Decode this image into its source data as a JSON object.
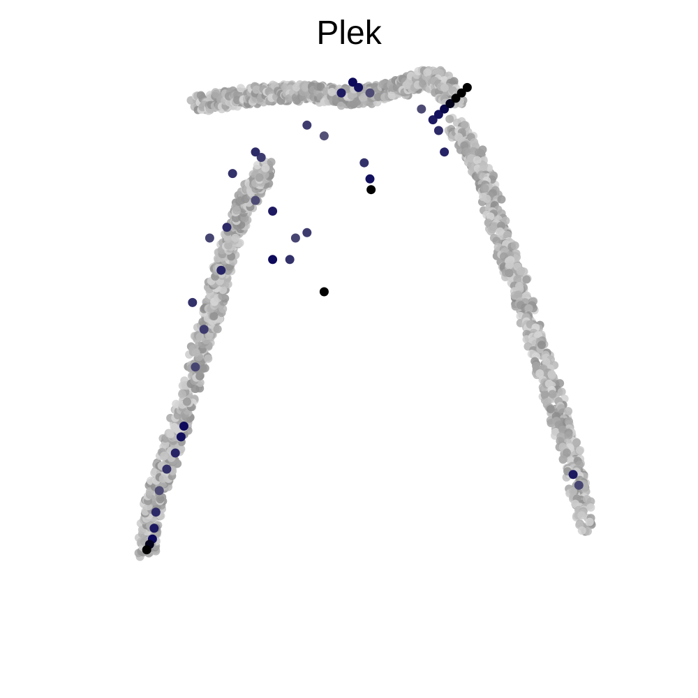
{
  "chart_data": {
    "type": "scatter",
    "title": "Plek",
    "xlabel": "",
    "ylabel": "",
    "axes_visible": false,
    "grid": false,
    "legend": "none",
    "color_scale": {
      "measure": "expression",
      "low": "#d9d9d9",
      "mid": "#8c8c8c",
      "high": "#0d0a5c",
      "max": "#000000"
    },
    "branches": [
      {
        "name": "",
        "x": [
          20,
          26,
          33,
          40,
          47,
          55,
          61,
          65
        ],
        "y": [
          95,
          96,
          97,
          97,
          96,
          98,
          100,
          96
        ]
      },
      {
        "name": "",
        "x": [
          11,
          12,
          15,
          18,
          22,
          25,
          28,
          32
        ],
        "y": [
          12,
          20,
          30,
          40,
          55,
          67,
          76,
          83
        ]
      },
      {
        "name": "",
        "x": [
          65,
          70,
          73,
          77,
          81,
          85,
          88
        ],
        "y": [
          91,
          82,
          70,
          58,
          44,
          30,
          16
        ]
      }
    ],
    "points": [
      {
        "x": 11,
        "y": 12,
        "v": 1.0
      },
      {
        "x": 11.5,
        "y": 13,
        "v": 0.97
      },
      {
        "x": 12,
        "y": 14,
        "v": 0.9
      },
      {
        "x": 12.3,
        "y": 16,
        "v": 0.85
      },
      {
        "x": 12.6,
        "y": 19,
        "v": 0.8
      },
      {
        "x": 13.2,
        "y": 23,
        "v": 0.7
      },
      {
        "x": 14.5,
        "y": 27,
        "v": 0.78
      },
      {
        "x": 16,
        "y": 30,
        "v": 0.82
      },
      {
        "x": 17,
        "y": 33,
        "v": 0.88
      },
      {
        "x": 17.5,
        "y": 35,
        "v": 0.9
      },
      {
        "x": 19.5,
        "y": 46,
        "v": 0.72
      },
      {
        "x": 21,
        "y": 53,
        "v": 0.75
      },
      {
        "x": 19,
        "y": 58,
        "v": 0.78
      },
      {
        "x": 24,
        "y": 64,
        "v": 0.82
      },
      {
        "x": 22,
        "y": 70,
        "v": 0.72
      },
      {
        "x": 25,
        "y": 72,
        "v": 0.8
      },
      {
        "x": 26,
        "y": 82,
        "v": 0.78
      },
      {
        "x": 30,
        "y": 86,
        "v": 0.8
      },
      {
        "x": 39,
        "y": 91,
        "v": 0.75
      },
      {
        "x": 42,
        "y": 89,
        "v": 0.68
      },
      {
        "x": 45,
        "y": 97,
        "v": 0.85
      },
      {
        "x": 47,
        "y": 99,
        "v": 0.9
      },
      {
        "x": 48,
        "y": 98,
        "v": 0.88
      },
      {
        "x": 50,
        "y": 97,
        "v": 0.7
      },
      {
        "x": 49,
        "y": 84,
        "v": 0.78
      },
      {
        "x": 50,
        "y": 81,
        "v": 0.88
      },
      {
        "x": 50.2,
        "y": 79,
        "v": 1.0
      },
      {
        "x": 30,
        "y": 77,
        "v": 0.7
      },
      {
        "x": 31,
        "y": 85,
        "v": 0.75
      },
      {
        "x": 33,
        "y": 75,
        "v": 0.85
      },
      {
        "x": 36,
        "y": 66,
        "v": 0.78
      },
      {
        "x": 39,
        "y": 71,
        "v": 0.75
      },
      {
        "x": 37,
        "y": 70,
        "v": 0.72
      },
      {
        "x": 42,
        "y": 60,
        "v": 1.0
      },
      {
        "x": 33,
        "y": 66,
        "v": 0.9
      },
      {
        "x": 59,
        "y": 94,
        "v": 0.7
      },
      {
        "x": 61,
        "y": 92,
        "v": 0.85
      },
      {
        "x": 62,
        "y": 93,
        "v": 0.88
      },
      {
        "x": 63,
        "y": 94,
        "v": 0.92
      },
      {
        "x": 64,
        "y": 95,
        "v": 0.97
      },
      {
        "x": 65,
        "y": 96,
        "v": 1.0
      },
      {
        "x": 66,
        "y": 97,
        "v": 1.0
      },
      {
        "x": 67,
        "y": 98,
        "v": 1.0
      },
      {
        "x": 62,
        "y": 90,
        "v": 0.8
      },
      {
        "x": 63,
        "y": 86,
        "v": 0.82
      },
      {
        "x": 85.5,
        "y": 26,
        "v": 0.85
      },
      {
        "x": 86.5,
        "y": 24,
        "v": 0.72
      }
    ]
  }
}
